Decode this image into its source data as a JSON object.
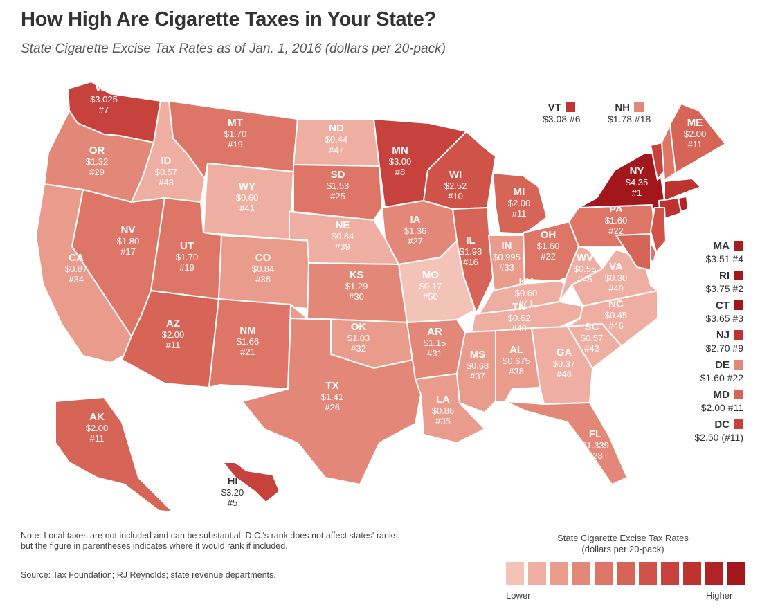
{
  "title": "How High Are Cigarette Taxes in Your State?",
  "subtitle": "State Cigarette Excise Tax Rates as of Jan. 1, 2016 (dollars per 20-pack)",
  "colors": {
    "scale": [
      "#f4c3b8",
      "#eeaea1",
      "#e99b8c",
      "#e38878",
      "#dd7667",
      "#d66557",
      "#cf5349",
      "#c7423c",
      "#bc3330",
      "#b02426",
      "#a1171b"
    ]
  },
  "states": [
    {
      "abbr": "WA",
      "rate": "$3.025",
      "rank": "#7"
    },
    {
      "abbr": "OR",
      "rate": "$1.32",
      "rank": "#29"
    },
    {
      "abbr": "CA",
      "rate": "$0.87",
      "rank": "#34"
    },
    {
      "abbr": "ID",
      "rate": "$0.57",
      "rank": "#43"
    },
    {
      "abbr": "NV",
      "rate": "$1.80",
      "rank": "#17"
    },
    {
      "abbr": "MT",
      "rate": "$1.70",
      "rank": "#19"
    },
    {
      "abbr": "WY",
      "rate": "$0.60",
      "rank": "#41"
    },
    {
      "abbr": "UT",
      "rate": "$1.70",
      "rank": "#19"
    },
    {
      "abbr": "AZ",
      "rate": "$2.00",
      "rank": "#11"
    },
    {
      "abbr": "CO",
      "rate": "$0.84",
      "rank": "#36"
    },
    {
      "abbr": "NM",
      "rate": "$1.66",
      "rank": "#21"
    },
    {
      "abbr": "ND",
      "rate": "$0.44",
      "rank": "#47"
    },
    {
      "abbr": "SD",
      "rate": "$1.53",
      "rank": "#25"
    },
    {
      "abbr": "NE",
      "rate": "$0.64",
      "rank": "#39"
    },
    {
      "abbr": "KS",
      "rate": "$1.29",
      "rank": "#30"
    },
    {
      "abbr": "OK",
      "rate": "$1.03",
      "rank": "#32"
    },
    {
      "abbr": "TX",
      "rate": "$1.41",
      "rank": "#26"
    },
    {
      "abbr": "MN",
      "rate": "$3.00",
      "rank": "#8"
    },
    {
      "abbr": "IA",
      "rate": "$1.36",
      "rank": "#27"
    },
    {
      "abbr": "MO",
      "rate": "$0.17",
      "rank": "#50"
    },
    {
      "abbr": "AR",
      "rate": "$1.15",
      "rank": "#31"
    },
    {
      "abbr": "LA",
      "rate": "$0.86",
      "rank": "#35"
    },
    {
      "abbr": "WI",
      "rate": "$2.52",
      "rank": "#10"
    },
    {
      "abbr": "IL",
      "rate": "$1.98",
      "rank": "#16"
    },
    {
      "abbr": "MI",
      "rate": "$2.00",
      "rank": "#11"
    },
    {
      "abbr": "IN",
      "rate": "$0.995",
      "rank": "#33"
    },
    {
      "abbr": "OH",
      "rate": "$1.60",
      "rank": "#22"
    },
    {
      "abbr": "KY",
      "rate": "$0.60",
      "rank": "#41"
    },
    {
      "abbr": "TN",
      "rate": "$0.62",
      "rank": "#40"
    },
    {
      "abbr": "MS",
      "rate": "$0.68",
      "rank": "#37"
    },
    {
      "abbr": "AL",
      "rate": "$0.675",
      "rank": "#38"
    },
    {
      "abbr": "GA",
      "rate": "$0.37",
      "rank": "#48"
    },
    {
      "abbr": "FL",
      "rate": "$1.339",
      "rank": "#28"
    },
    {
      "abbr": "SC",
      "rate": "$0.57",
      "rank": "#43"
    },
    {
      "abbr": "NC",
      "rate": "$0.45",
      "rank": "#46"
    },
    {
      "abbr": "VA",
      "rate": "$0.30",
      "rank": "#49"
    },
    {
      "abbr": "WV",
      "rate": "$0.55",
      "rank": "#45"
    },
    {
      "abbr": "PA",
      "rate": "$1.60",
      "rank": "#22"
    },
    {
      "abbr": "NY",
      "rate": "$4.35",
      "rank": "#1"
    },
    {
      "abbr": "ME",
      "rate": "$2.00",
      "rank": "#11"
    },
    {
      "abbr": "AK",
      "rate": "$2.00",
      "rank": "#11"
    },
    {
      "abbr": "HI",
      "rate": "$3.20",
      "rank": "#5"
    }
  ],
  "callouts": [
    {
      "abbr": "VT",
      "value": "$3.08 #6"
    },
    {
      "abbr": "NH",
      "value": "$1.78 #18"
    },
    {
      "abbr": "MA",
      "value": "$3.51 #4"
    },
    {
      "abbr": "RI",
      "value": "$3.75 #2"
    },
    {
      "abbr": "CT",
      "value": "$3.65 #3"
    },
    {
      "abbr": "NJ",
      "value": "$2.70 #9"
    },
    {
      "abbr": "DE",
      "value": "$1.60 #22"
    },
    {
      "abbr": "MD",
      "value": "$2.00 #11"
    },
    {
      "abbr": "DC",
      "value": "$2.50 (#11)"
    }
  ],
  "note": "Note: Local taxes are not included and can be substantial. D.C.'s rank does not affect states' ranks, but the figure in parentheses indicates where it would rank if included.",
  "source": "Source: Tax Foundation; RJ Reynolds; state revenue departments.",
  "legend": {
    "title_line1": "State Cigarette Excise Tax Rates",
    "title_line2": "(dollars per 20-pack)",
    "low": "Lower",
    "high": "Higher"
  }
}
